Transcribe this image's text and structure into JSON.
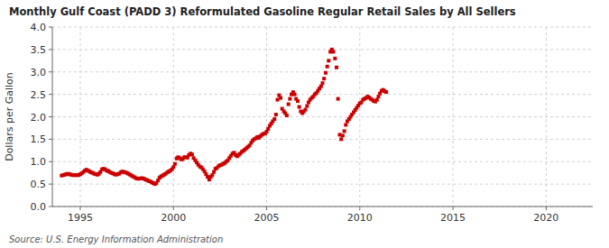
{
  "chart_data": {
    "type": "scatter",
    "title": "Monthly Gulf Coast (PADD 3) Reformulated Gasoline Regular Retail Sales by All Sellers",
    "ylabel": "Dollars per Gallon",
    "annotations": [
      "Source: U.S. Energy Information Administration"
    ],
    "color": "#cc0000",
    "marker": "square",
    "grid": true,
    "xlim": [
      1993.5,
      2022.5
    ],
    "ylim": [
      0.0,
      4.0
    ],
    "xticks": [
      1995,
      2000,
      2005,
      2010,
      2015,
      2020
    ],
    "yticks": [
      {
        "value": 0.0,
        "label": "0.0"
      },
      0.5,
      {
        "value": 1.0,
        "label": "1.0"
      },
      1.5,
      {
        "value": 2.0,
        "label": "2.0"
      },
      2.5,
      {
        "value": 3.0,
        "label": "3.0"
      },
      3.5,
      {
        "value": 4.0,
        "label": "4.0"
      }
    ],
    "x": [
      1994.0,
      1994.08,
      1994.17,
      1994.25,
      1994.33,
      1994.42,
      1994.5,
      1994.58,
      1994.67,
      1994.75,
      1994.83,
      1994.92,
      1995.0,
      1995.08,
      1995.17,
      1995.25,
      1995.33,
      1995.42,
      1995.5,
      1995.58,
      1995.67,
      1995.75,
      1995.83,
      1995.92,
      1996.0,
      1996.08,
      1996.17,
      1996.25,
      1996.33,
      1996.42,
      1996.5,
      1996.58,
      1996.67,
      1996.75,
      1996.83,
      1996.92,
      1997.0,
      1997.08,
      1997.17,
      1997.25,
      1997.33,
      1997.42,
      1997.5,
      1997.58,
      1997.67,
      1997.75,
      1997.83,
      1997.92,
      1998.0,
      1998.08,
      1998.17,
      1998.25,
      1998.33,
      1998.42,
      1998.5,
      1998.58,
      1998.67,
      1998.75,
      1998.83,
      1998.92,
      1999.0,
      1999.08,
      1999.17,
      1999.25,
      1999.33,
      1999.42,
      1999.5,
      1999.58,
      1999.67,
      1999.75,
      1999.83,
      1999.92,
      2000.0,
      2000.08,
      2000.17,
      2000.25,
      2000.33,
      2000.42,
      2000.5,
      2000.58,
      2000.67,
      2000.75,
      2000.83,
      2000.92,
      2001.0,
      2001.08,
      2001.17,
      2001.25,
      2001.33,
      2001.42,
      2001.5,
      2001.58,
      2001.67,
      2001.75,
      2001.83,
      2001.92,
      2002.0,
      2002.08,
      2002.17,
      2002.25,
      2002.33,
      2002.42,
      2002.5,
      2002.58,
      2002.67,
      2002.75,
      2002.83,
      2002.92,
      2003.0,
      2003.08,
      2003.17,
      2003.25,
      2003.33,
      2003.42,
      2003.5,
      2003.58,
      2003.67,
      2003.75,
      2003.83,
      2003.92,
      2004.0,
      2004.08,
      2004.17,
      2004.25,
      2004.33,
      2004.42,
      2004.5,
      2004.58,
      2004.67,
      2004.75,
      2004.83,
      2004.92,
      2005.0,
      2005.08,
      2005.17,
      2005.25,
      2005.33,
      2005.42,
      2005.5,
      2005.58,
      2005.67,
      2005.75,
      2005.83,
      2005.92,
      2006.0,
      2006.08,
      2006.17,
      2006.25,
      2006.33,
      2006.42,
      2006.5,
      2006.58,
      2006.67,
      2006.75,
      2006.83,
      2006.92,
      2007.0,
      2007.08,
      2007.17,
      2007.25,
      2007.33,
      2007.42,
      2007.5,
      2007.58,
      2007.67,
      2007.75,
      2007.83,
      2007.92,
      2008.0,
      2008.08,
      2008.17,
      2008.25,
      2008.33,
      2008.42,
      2008.5,
      2008.58,
      2008.67,
      2008.75,
      2008.83,
      2008.92,
      2009.0,
      2009.08,
      2009.17,
      2009.25,
      2009.33,
      2009.42,
      2009.5,
      2009.58,
      2009.67,
      2009.75,
      2009.83,
      2009.92,
      2010.0,
      2010.08,
      2010.17,
      2010.25,
      2010.33,
      2010.42,
      2010.5,
      2010.58,
      2010.67,
      2010.75,
      2010.83,
      2010.92,
      2011.0,
      2011.08,
      2011.17,
      2011.25,
      2011.33,
      2011.42
    ],
    "values": [
      0.69,
      0.7,
      0.71,
      0.72,
      0.73,
      0.72,
      0.71,
      0.7,
      0.7,
      0.7,
      0.7,
      0.7,
      0.72,
      0.74,
      0.77,
      0.8,
      0.82,
      0.8,
      0.78,
      0.76,
      0.75,
      0.73,
      0.72,
      0.71,
      0.73,
      0.77,
      0.83,
      0.84,
      0.83,
      0.8,
      0.79,
      0.77,
      0.75,
      0.74,
      0.72,
      0.71,
      0.72,
      0.73,
      0.76,
      0.78,
      0.77,
      0.76,
      0.75,
      0.73,
      0.71,
      0.69,
      0.67,
      0.65,
      0.63,
      0.62,
      0.62,
      0.63,
      0.63,
      0.62,
      0.6,
      0.59,
      0.57,
      0.56,
      0.54,
      0.52,
      0.5,
      0.52,
      0.58,
      0.64,
      0.67,
      0.69,
      0.71,
      0.73,
      0.76,
      0.78,
      0.8,
      0.83,
      0.88,
      0.95,
      1.07,
      1.1,
      1.08,
      1.05,
      1.06,
      1.1,
      1.1,
      1.09,
      1.15,
      1.18,
      1.16,
      1.08,
      1.03,
      0.98,
      0.93,
      0.89,
      0.87,
      0.83,
      0.78,
      0.72,
      0.66,
      0.6,
      0.66,
      0.7,
      0.77,
      0.84,
      0.86,
      0.9,
      0.92,
      0.93,
      0.95,
      0.97,
      1.0,
      1.03,
      1.08,
      1.13,
      1.18,
      1.2,
      1.15,
      1.12,
      1.15,
      1.18,
      1.22,
      1.24,
      1.27,
      1.3,
      1.33,
      1.36,
      1.42,
      1.47,
      1.5,
      1.52,
      1.55,
      1.53,
      1.57,
      1.6,
      1.62,
      1.63,
      1.67,
      1.73,
      1.8,
      1.85,
      1.9,
      1.95,
      2.05,
      2.38,
      2.48,
      2.42,
      2.18,
      2.12,
      2.08,
      2.03,
      2.28,
      2.4,
      2.5,
      2.55,
      2.5,
      2.4,
      2.35,
      2.22,
      2.12,
      2.08,
      2.12,
      2.16,
      2.24,
      2.32,
      2.38,
      2.42,
      2.45,
      2.5,
      2.53,
      2.58,
      2.63,
      2.68,
      2.75,
      2.85,
      2.98,
      3.12,
      3.25,
      3.45,
      3.5,
      3.45,
      3.3,
      3.1,
      2.4,
      1.6,
      1.5,
      1.58,
      1.68,
      1.82,
      1.9,
      1.95,
      2.0,
      2.05,
      2.1,
      2.15,
      2.2,
      2.25,
      2.3,
      2.32,
      2.38,
      2.4,
      2.42,
      2.45,
      2.43,
      2.4,
      2.38,
      2.35,
      2.34,
      2.38,
      2.45,
      2.52,
      2.58,
      2.6,
      2.57,
      2.55
    ]
  }
}
